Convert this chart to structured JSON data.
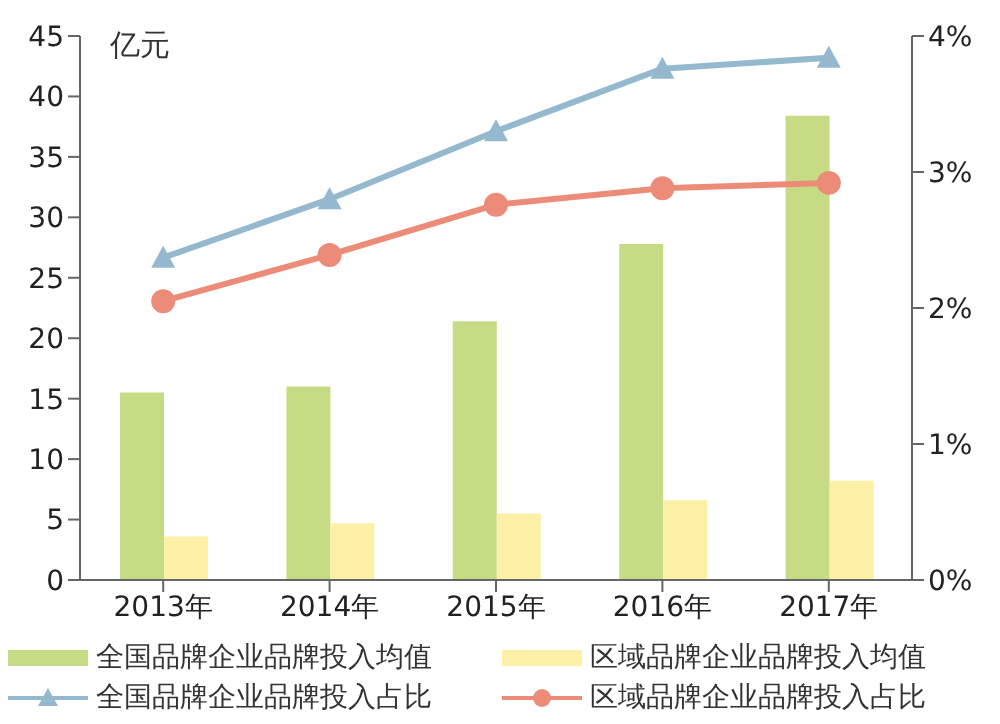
{
  "chart_data": {
    "type": "bar",
    "ylabel": "亿元",
    "categories": [
      "2013年",
      "2014年",
      "2015年",
      "2016年",
      "2017年"
    ],
    "series": [
      {
        "name": "全国品牌企业品牌投入均值",
        "color": "#c5dc85",
        "values": [
          15.5,
          16,
          21.4,
          27.8,
          38.4
        ]
      },
      {
        "name": "区域品牌企业品牌投入均值",
        "color": "#fcefa6",
        "values": [
          3.6,
          4.7,
          5.5,
          6.6,
          8.2
        ]
      },
      {
        "name": "全国品牌企业品牌投入占比",
        "type": "line",
        "axis": "y2",
        "marker": "triangle",
        "color": "#94b8cd",
        "values": [
          2.37,
          2.8,
          3.3,
          3.76,
          3.84
        ]
      },
      {
        "name": "区域品牌企业品牌投入占比",
        "type": "line",
        "axis": "y2",
        "marker": "circle",
        "color": "#ec8c78",
        "values": [
          2.05,
          2.39,
          2.76,
          2.88,
          2.92
        ]
      }
    ],
    "ylim": [
      0,
      45
    ],
    "yticks": [
      0,
      5,
      10,
      15,
      20,
      25,
      30,
      35,
      40,
      45
    ],
    "y2lim": [
      0,
      4
    ],
    "y2ticks": [
      {
        "value": 0,
        "label": "0%"
      },
      {
        "value": 1,
        "label": "1%"
      },
      {
        "value": 2,
        "label": "2%"
      },
      {
        "value": 3,
        "label": "3%"
      },
      {
        "value": 4,
        "label": "4%"
      }
    ],
    "grid": false,
    "legend": "bottom"
  }
}
